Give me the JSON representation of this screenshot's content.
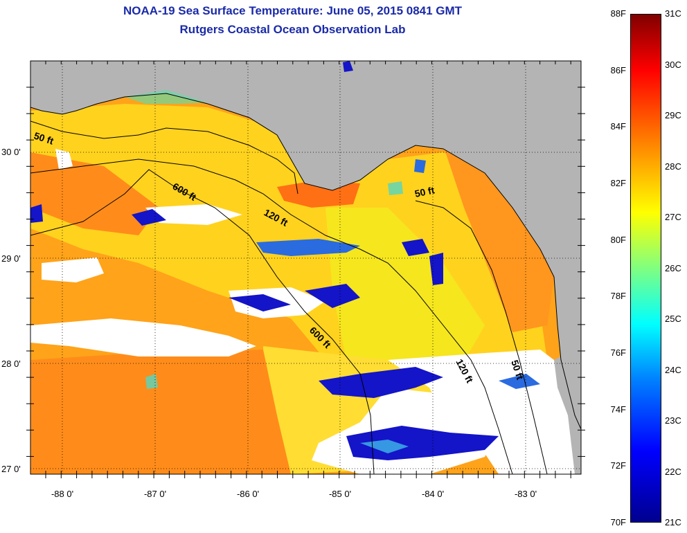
{
  "title_line1": "NOAA-19 Sea Surface Temperature:  June 05, 2015 0841 GMT",
  "title_line2": "Rutgers Coastal Ocean Observation Lab",
  "lat_labels": [
    "30 0'",
    "29 0'",
    "28 0'",
    "27 0'"
  ],
  "lon_labels": [
    "-88 0'",
    "-87 0'",
    "-86 0'",
    "-85 0'",
    "-84 0'",
    "-83 0'"
  ],
  "contours": [
    {
      "label": "50 ft"
    },
    {
      "label": "600 ft"
    },
    {
      "label": "120 ft"
    },
    {
      "label": "50 ft"
    },
    {
      "label": "600 ft"
    },
    {
      "label": "120 ft"
    },
    {
      "label": "50 ft"
    }
  ],
  "colorbar_f": [
    "88F",
    "86F",
    "84F",
    "82F",
    "80F",
    "78F",
    "76F",
    "74F",
    "72F",
    "70F"
  ],
  "colorbar_c": [
    "31C",
    "30C",
    "29C",
    "28C",
    "27C",
    "26C",
    "25C",
    "24C",
    "23C",
    "22C",
    "21C"
  ],
  "colors": {
    "title": "#1a2aa8",
    "land": "#b4b4b4",
    "cloud": "#ffffff",
    "warm_orange": "#ff8c1a",
    "yellow": "#ffd21e",
    "cold_blue": "#1414c8"
  }
}
